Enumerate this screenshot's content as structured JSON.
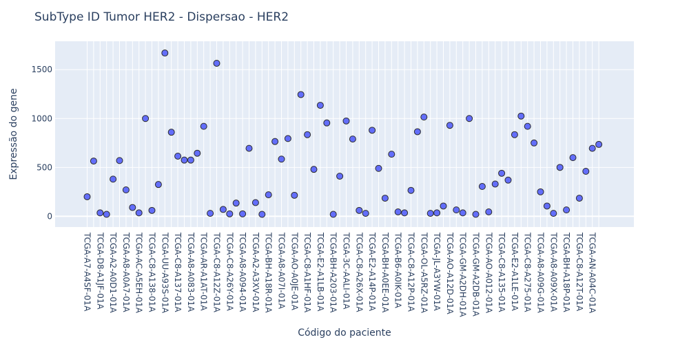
{
  "chart_data": {
    "type": "scatter",
    "title": "SubType ID Tumor HER2 - Dispersao - HER2",
    "xlabel": "Código do paciente",
    "ylabel": "Expressão do gene",
    "ylim": [
      -110,
      1790
    ],
    "yticks": [
      0,
      500,
      1000,
      1500
    ],
    "ytick_labels": [
      "0",
      "500",
      "1000",
      "1500"
    ],
    "grid": true,
    "x_label_every": 2,
    "colors": {
      "plot_bg": "#e5ecf6",
      "marker": "#636efa",
      "marker_edge": "#2b2b2b",
      "text": "#2a3f5f"
    },
    "x": [
      "TCGA-A7-A4SF-01A",
      "",
      "TCGA-D8-A1JF-01A",
      "",
      "TCGA-A2-A0D1-01A",
      "",
      "TCGA-A8-A0A7-01A",
      "",
      "TCGA-AC-A5EH-01A",
      "",
      "TCGA-C8-A138-01A",
      "",
      "TCGA-UU-A93S-01A",
      "",
      "TCGA-C8-A137-01A",
      "",
      "TCGA-A8-A083-01A",
      "",
      "TCGA-AR-A1AT-01A",
      "",
      "TCGA-C8-A12Z-01A",
      "",
      "TCGA-C8-A26Y-01A",
      "",
      "TCGA-A8-A094-01A",
      "",
      "TCGA-A2-A3XV-01A",
      "",
      "TCGA-BH-A18R-01A",
      "",
      "TCGA-A8-A07I-01A",
      "",
      "TCGA-AO-A0JE-01A",
      "",
      "TCGA-C8-A1HF-01A",
      "",
      "TCGA-E2-A1LB-01A",
      "",
      "TCGA-BH-A203-01A",
      "",
      "TCGA-3C-AALI-01A",
      "",
      "TCGA-C8-A26X-01A",
      "",
      "TCGA-E2-A14P-01A",
      "",
      "TCGA-BH-A0EE-01A",
      "",
      "TCGA-B6-A0IK-01A",
      "",
      "TCGA-C8-A12P-01A",
      "",
      "TCGA-OL-A5RZ-01A",
      "",
      "TCGA-JL-A3YW-01A",
      "",
      "TCGA-AO-A12D-01A",
      "",
      "TCGA-GM-A2DH-01A",
      "",
      "TCGA-GM-A2DB-01A",
      "",
      "TCGA-AO-A012-01A",
      "",
      "TCGA-C8-A135-01A",
      "",
      "TCGA-E2-A1LE-01A",
      "",
      "TCGA-C8-A275-01A",
      "",
      "TCGA-A8-A09G-01A",
      "",
      "TCGA-A8-A09X-01A",
      "",
      "TCGA-BH-A18P-01A",
      "",
      "TCGA-C8-A12T-01A",
      "",
      "TCGA-AN-A04C-01A",
      ""
    ],
    "y": [
      200,
      565,
      35,
      20,
      380,
      570,
      270,
      90,
      35,
      1000,
      60,
      325,
      1670,
      860,
      615,
      575,
      575,
      645,
      920,
      30,
      1565,
      70,
      25,
      135,
      25,
      695,
      140,
      20,
      220,
      765,
      585,
      795,
      215,
      1245,
      835,
      480,
      1135,
      955,
      20,
      410,
      975,
      790,
      60,
      30,
      880,
      490,
      185,
      635,
      45,
      35,
      265,
      865,
      1015,
      30,
      35,
      105,
      930,
      65,
      35,
      1000,
      20,
      305,
      45,
      330,
      440,
      370,
      835,
      1025,
      920,
      750,
      250,
      105,
      30,
      500,
      65,
      600,
      185,
      460,
      695,
      735
    ]
  }
}
